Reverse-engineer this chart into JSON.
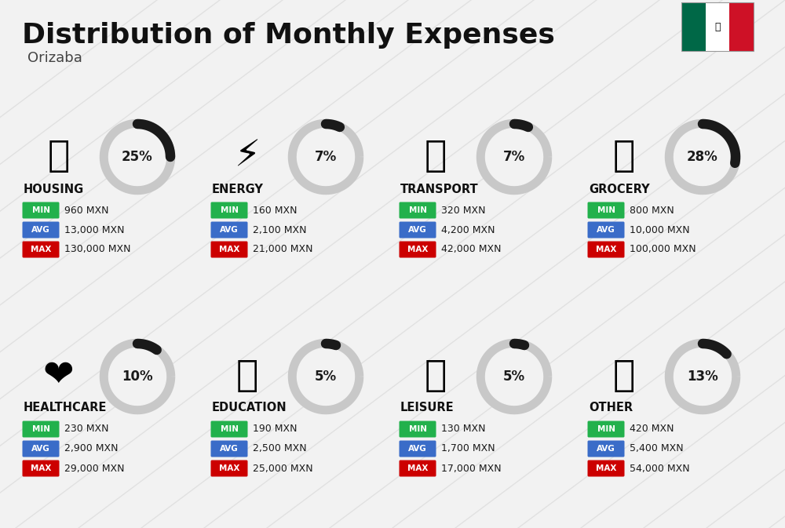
{
  "title": "Distribution of Monthly Expenses",
  "subtitle": "Orizaba",
  "background_color": "#f2f2f2",
  "categories": [
    {
      "name": "HOUSING",
      "percent": 25,
      "min": "960 MXN",
      "avg": "13,000 MXN",
      "max": "130,000 MXN",
      "icon": "🏙",
      "row": 0,
      "col": 0
    },
    {
      "name": "ENERGY",
      "percent": 7,
      "min": "160 MXN",
      "avg": "2,100 MXN",
      "max": "21,000 MXN",
      "icon": "⚡",
      "row": 0,
      "col": 1
    },
    {
      "name": "TRANSPORT",
      "percent": 7,
      "min": "320 MXN",
      "avg": "4,200 MXN",
      "max": "42,000 MXN",
      "icon": "🚌",
      "row": 0,
      "col": 2
    },
    {
      "name": "GROCERY",
      "percent": 28,
      "min": "800 MXN",
      "avg": "10,000 MXN",
      "max": "100,000 MXN",
      "icon": "🛒",
      "row": 0,
      "col": 3
    },
    {
      "name": "HEALTHCARE",
      "percent": 10,
      "min": "230 MXN",
      "avg": "2,900 MXN",
      "max": "29,000 MXN",
      "icon": "❤️",
      "row": 1,
      "col": 0
    },
    {
      "name": "EDUCATION",
      "percent": 5,
      "min": "190 MXN",
      "avg": "2,500 MXN",
      "max": "25,000 MXN",
      "icon": "🎓",
      "row": 1,
      "col": 1
    },
    {
      "name": "LEISURE",
      "percent": 5,
      "min": "130 MXN",
      "avg": "1,700 MXN",
      "max": "17,000 MXN",
      "icon": "🛍️",
      "row": 1,
      "col": 2
    },
    {
      "name": "OTHER",
      "percent": 13,
      "min": "420 MXN",
      "avg": "5,400 MXN",
      "max": "54,000 MXN",
      "icon": "💰",
      "row": 1,
      "col": 3
    }
  ],
  "min_color": "#22b14c",
  "avg_color": "#3a6cc8",
  "max_color": "#cc0000",
  "ring_filled_color": "#1a1a1a",
  "ring_empty_color": "#c8c8c8",
  "percent_text_color": "#1a1a1a",
  "title_color": "#111111",
  "subtitle_color": "#444444",
  "diag_line_color": "#d0d0d0",
  "flag_green": "#006847",
  "flag_white": "#ffffff",
  "flag_red": "#ce1126"
}
